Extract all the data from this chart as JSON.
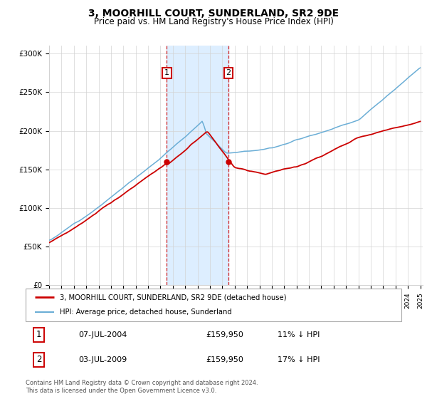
{
  "title": "3, MOORHILL COURT, SUNDERLAND, SR2 9DE",
  "subtitle": "Price paid vs. HM Land Registry's House Price Index (HPI)",
  "ylim": [
    0,
    310000
  ],
  "yticks": [
    0,
    50000,
    100000,
    150000,
    200000,
    250000,
    300000
  ],
  "ytick_labels": [
    "£0",
    "£50K",
    "£100K",
    "£150K",
    "£200K",
    "£250K",
    "£300K"
  ],
  "sale1_date": 2004.52,
  "sale1_price": 159950,
  "sale2_date": 2009.5,
  "sale2_price": 159950,
  "hpi_color": "#6baed6",
  "price_color": "#cc0000",
  "shade_color": "#ddeeff",
  "legend_line1": "3, MOORHILL COURT, SUNDERLAND, SR2 9DE (detached house)",
  "legend_line2": "HPI: Average price, detached house, Sunderland",
  "table_row1": [
    "1",
    "07-JUL-2004",
    "£159,950",
    "11% ↓ HPI"
  ],
  "table_row2": [
    "2",
    "03-JUL-2009",
    "£159,950",
    "17% ↓ HPI"
  ],
  "footer": "Contains HM Land Registry data © Crown copyright and database right 2024.\nThis data is licensed under the Open Government Licence v3.0."
}
